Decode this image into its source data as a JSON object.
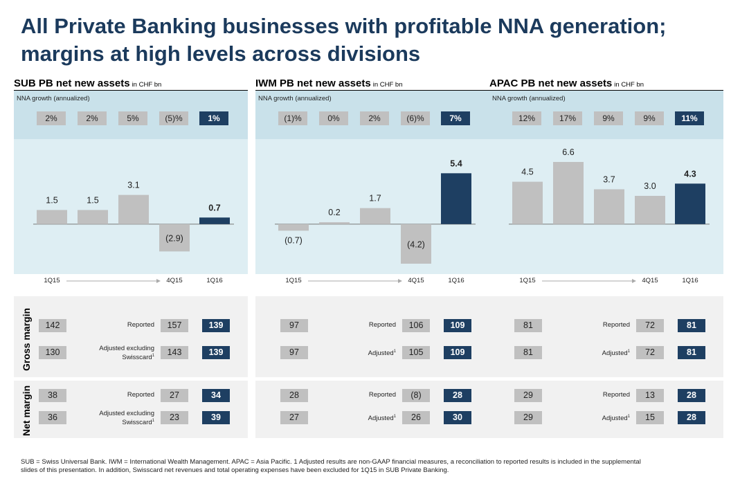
{
  "title_line1": "All Private Banking businesses with profitable NNA generation;",
  "title_line2": "margins at high levels across divisions",
  "nna_label": "NNA growth (annualized)",
  "gross_margin_label": "Gross margin",
  "net_margin_label": "Net margin",
  "colors": {
    "title": "#1b3a5c",
    "highlight": "#1e3f62",
    "bar_gray": "#c0c0c0",
    "nna_band": "#c9e1ea",
    "chart_band": "#deeef3"
  },
  "chart_data": [
    {
      "type": "bar",
      "title": "SUB PB net new assets",
      "unit": "in CHF bn",
      "categories": [
        "1Q15",
        "",
        "",
        "4Q15",
        "1Q16"
      ],
      "values": [
        1.5,
        1.5,
        3.1,
        -2.9,
        0.7
      ],
      "value_labels": [
        "1.5",
        "1.5",
        "3.1",
        "(2.9)",
        "0.7"
      ],
      "highlight_index": 4,
      "nna_growth": [
        "2%",
        "2%",
        "5%",
        "(5)%",
        "1%"
      ],
      "ylim": [
        -4.2,
        6.6
      ]
    },
    {
      "type": "bar",
      "title": "IWM PB net new assets",
      "unit": "in CHF bn",
      "categories": [
        "1Q15",
        "",
        "",
        "4Q15",
        "1Q16"
      ],
      "values": [
        -0.7,
        0.2,
        1.7,
        -4.2,
        5.4
      ],
      "value_labels": [
        "(0.7)",
        "0.2",
        "1.7",
        "(4.2)",
        "5.4"
      ],
      "highlight_index": 4,
      "nna_growth": [
        "(1)%",
        "0%",
        "2%",
        "(6)%",
        "7%"
      ],
      "ylim": [
        -4.2,
        6.6
      ]
    },
    {
      "type": "bar",
      "title": "APAC PB net new assets",
      "unit": "in CHF bn",
      "categories": [
        "1Q15",
        "",
        "",
        "4Q15",
        "1Q16"
      ],
      "values": [
        4.5,
        6.6,
        3.7,
        3.0,
        4.3
      ],
      "value_labels": [
        "4.5",
        "6.6",
        "3.7",
        "3.0",
        "4.3"
      ],
      "highlight_index": 4,
      "nna_growth": [
        "12%",
        "17%",
        "9%",
        "9%",
        "11%"
      ],
      "ylim": [
        -4.2,
        6.6
      ]
    }
  ],
  "margins": [
    {
      "gross": [
        {
          "first": "142",
          "label": "Reported",
          "label2": "",
          "sup": "",
          "prev": "157",
          "current": "139"
        },
        {
          "first": "130",
          "label": "Adjusted excluding",
          "label2": "Swisscard",
          "sup": "1",
          "prev": "143",
          "current": "139"
        }
      ],
      "net": [
        {
          "first": "38",
          "label": "Reported",
          "label2": "",
          "sup": "",
          "prev": "27",
          "current": "34"
        },
        {
          "first": "36",
          "label": "Adjusted excluding",
          "label2": "Swisscard",
          "sup": "1",
          "prev": "23",
          "current": "39"
        }
      ]
    },
    {
      "gross": [
        {
          "first": "97",
          "label": "Reported",
          "label2": "",
          "sup": "",
          "prev": "106",
          "current": "109"
        },
        {
          "first": "97",
          "label": "Adjusted",
          "label2": "",
          "sup": "1",
          "prev": "105",
          "current": "109"
        }
      ],
      "net": [
        {
          "first": "28",
          "label": "Reported",
          "label2": "",
          "sup": "",
          "prev": "(8)",
          "current": "28"
        },
        {
          "first": "27",
          "label": "Adjusted",
          "label2": "",
          "sup": "1",
          "prev": "26",
          "current": "30"
        }
      ]
    },
    {
      "gross": [
        {
          "first": "81",
          "label": "Reported",
          "label2": "",
          "sup": "",
          "prev": "72",
          "current": "81"
        },
        {
          "first": "81",
          "label": "Adjusted",
          "label2": "",
          "sup": "1",
          "prev": "72",
          "current": "81"
        }
      ],
      "net": [
        {
          "first": "29",
          "label": "Reported",
          "label2": "",
          "sup": "",
          "prev": "13",
          "current": "28"
        },
        {
          "first": "29",
          "label": "Adjusted",
          "label2": "",
          "sup": "1",
          "prev": "15",
          "current": "28"
        }
      ]
    }
  ],
  "footnote_line1": "SUB = Swiss Universal Bank.   IWM = International Wealth Management.   APAC = Asia Pacific.   1 Adjusted results are non-GAAP financial measures, a reconciliation to reported results is included in the supplemental",
  "footnote_line2": "slides of this presentation. In addition, Swisscard net revenues and total operating expenses have been excluded for 1Q15 in SUB Private Banking."
}
